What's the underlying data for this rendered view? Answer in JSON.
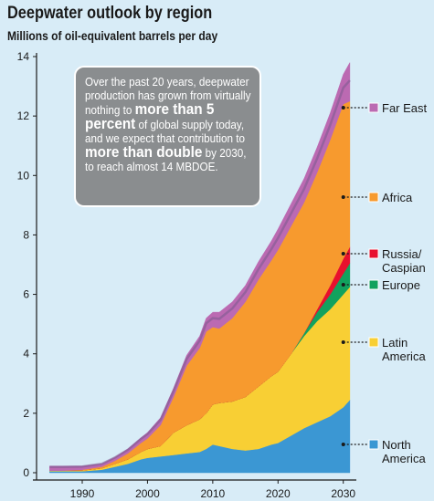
{
  "title": "Deepwater outlook by region",
  "subtitle": "Millions of oil-equivalent barrels per day",
  "callout": {
    "t1": "Over the past 20 years, deepwater production has grown from virtually nothing to ",
    "b1": "more than 5 percent",
    "t2": " of global supply today, and we expect that contribution to ",
    "b2": "more than double",
    "t3": " by 2030, to reach almost 14 MBDOE."
  },
  "colors": {
    "north_america": "#3b97d3",
    "latin_america": "#f8cf34",
    "europe": "#12a25e",
    "russia_caspian": "#e8102e",
    "africa": "#f79a2e",
    "far_east": "#bb6ab2",
    "far_east_edge": "#7a5a8e",
    "background": "#d8ecf7"
  },
  "chart_data": {
    "type": "area",
    "stacked": true,
    "x": [
      1985,
      1987,
      1990,
      1993,
      1995,
      1997,
      1999,
      2000,
      2002,
      2004,
      2006,
      2008,
      2009,
      2010,
      2011,
      2013,
      2015,
      2017,
      2019,
      2020,
      2022,
      2024,
      2026,
      2028,
      2030,
      2031
    ],
    "xticks": [
      1990,
      2000,
      2010,
      2020,
      2030
    ],
    "xlim": [
      1983,
      2032
    ],
    "yticks": [
      0,
      2,
      4,
      6,
      8,
      10,
      12,
      14
    ],
    "ylim": [
      0,
      14
    ],
    "series": [
      {
        "name": "North America",
        "legend": "North America",
        "color": "#3b97d3",
        "values": [
          0.05,
          0.05,
          0.05,
          0.1,
          0.2,
          0.3,
          0.45,
          0.5,
          0.55,
          0.6,
          0.65,
          0.7,
          0.8,
          0.95,
          0.9,
          0.8,
          0.75,
          0.8,
          0.95,
          1.0,
          1.25,
          1.5,
          1.7,
          1.9,
          2.2,
          2.45
        ]
      },
      {
        "name": "Latin America",
        "legend": "Latin America",
        "color": "#f8cf34",
        "values": [
          0.02,
          0.02,
          0.03,
          0.05,
          0.1,
          0.15,
          0.25,
          0.3,
          0.35,
          0.75,
          0.95,
          1.1,
          1.2,
          1.35,
          1.45,
          1.6,
          1.8,
          2.1,
          2.3,
          2.4,
          2.75,
          3.1,
          3.4,
          3.6,
          3.8,
          3.8
        ]
      },
      {
        "name": "Europe",
        "legend": "Europe",
        "color": "#12a25e",
        "values": [
          0,
          0,
          0,
          0,
          0,
          0,
          0,
          0,
          0,
          0,
          0,
          0,
          0,
          0,
          0,
          0,
          0,
          0,
          0,
          0,
          0,
          0.1,
          0.3,
          0.5,
          0.7,
          0.8
        ]
      },
      {
        "name": "Russia/Caspian",
        "legend": "Russia/ Caspian",
        "color": "#e8102e",
        "values": [
          0,
          0,
          0,
          0,
          0,
          0,
          0,
          0,
          0,
          0,
          0,
          0,
          0,
          0,
          0,
          0,
          0,
          0,
          0,
          0,
          0,
          0,
          0.1,
          0.3,
          0.5,
          0.55
        ]
      },
      {
        "name": "Africa",
        "legend": "Africa",
        "color": "#f79a2e",
        "values": [
          0,
          0,
          0.02,
          0.05,
          0.1,
          0.2,
          0.3,
          0.35,
          0.7,
          1.2,
          2.0,
          2.4,
          2.75,
          2.6,
          2.5,
          2.8,
          3.2,
          3.6,
          3.9,
          4.1,
          4.3,
          4.4,
          4.6,
          4.9,
          5.2,
          4.9
        ]
      },
      {
        "name": "Far East",
        "legend": "Far East",
        "color": "#bb6ab2",
        "values": [
          0.15,
          0.15,
          0.12,
          0.1,
          0.12,
          0.15,
          0.18,
          0.2,
          0.25,
          0.3,
          0.35,
          0.4,
          0.45,
          0.5,
          0.55,
          0.55,
          0.55,
          0.6,
          0.65,
          0.7,
          0.75,
          0.8,
          0.85,
          0.9,
          1.0,
          1.3
        ]
      }
    ],
    "legend_side": "right"
  }
}
